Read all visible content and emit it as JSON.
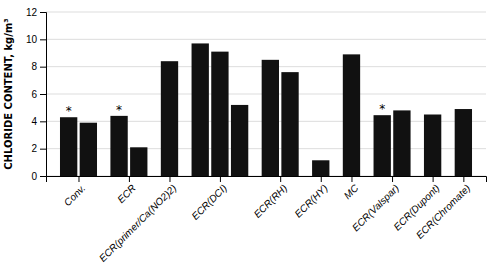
{
  "chart_data": {
    "type": "bar",
    "categories": [
      "Conv.",
      "ECR",
      "ECR(primer/Ca(NO2)2)",
      "ECR(DCI)",
      "ECR(RH)",
      "ECR(HY)",
      "MC",
      "ECR(Valspar)",
      "ECR(Dupont)",
      "ECR(Chromate)"
    ],
    "values": [
      [
        4.3,
        3.9
      ],
      [
        4.4,
        2.1
      ],
      [
        8.4
      ],
      [
        9.7,
        9.1,
        5.2
      ],
      [
        8.5,
        7.6
      ],
      [
        1.15
      ],
      [
        8.9
      ],
      [
        4.45,
        4.8
      ],
      [
        4.5
      ],
      [
        4.9
      ]
    ],
    "annotations": [
      [
        "*",
        null
      ],
      [
        "*",
        null
      ],
      [
        null
      ],
      [
        null,
        null,
        null
      ],
      [
        null,
        null
      ],
      [
        null
      ],
      [
        null
      ],
      [
        "*",
        null
      ],
      [
        null
      ],
      [
        null
      ]
    ],
    "y_label": "CHLORIDE CONTENT, kg/m³",
    "color": "#111111",
    "ylim": [
      0,
      12
    ],
    "yticks": [
      0,
      2,
      4,
      6,
      8,
      10,
      12
    ],
    "grid": true
  }
}
